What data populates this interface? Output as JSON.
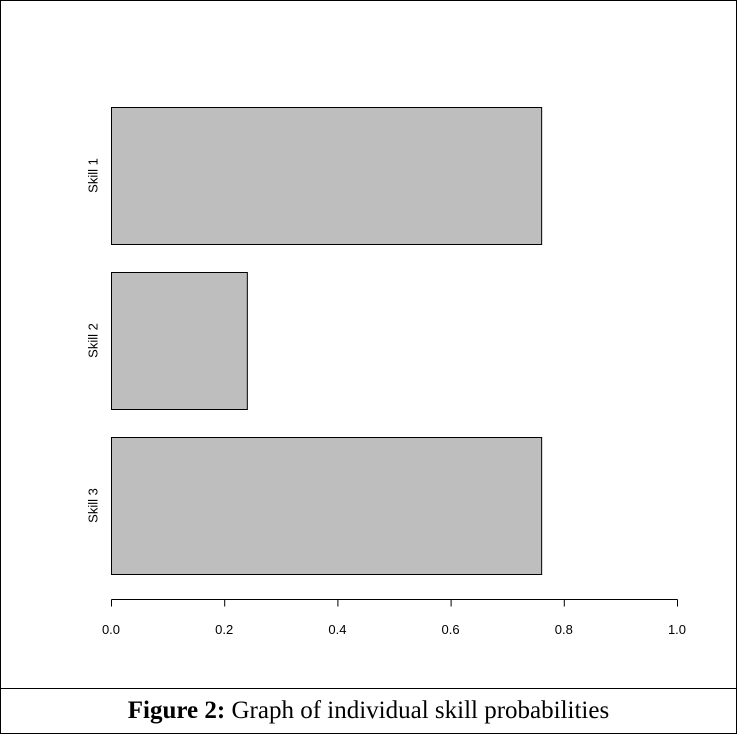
{
  "caption": {
    "label": "Figure 2:",
    "text": " Graph of individual skill probabilities"
  },
  "chart_data": {
    "type": "bar",
    "orientation": "horizontal",
    "categories": [
      "Skill 1",
      "Skill 2",
      "Skill 3"
    ],
    "values": [
      0.76,
      0.24,
      0.76
    ],
    "title": "",
    "xlabel": "",
    "ylabel": "",
    "xlim": [
      0,
      1.0
    ],
    "x_ticks": [
      "0.0",
      "0.2",
      "0.4",
      "0.6",
      "0.8",
      "1.0"
    ],
    "grid": false,
    "bar_color": "#bebebe",
    "edge_color": "#000000"
  }
}
